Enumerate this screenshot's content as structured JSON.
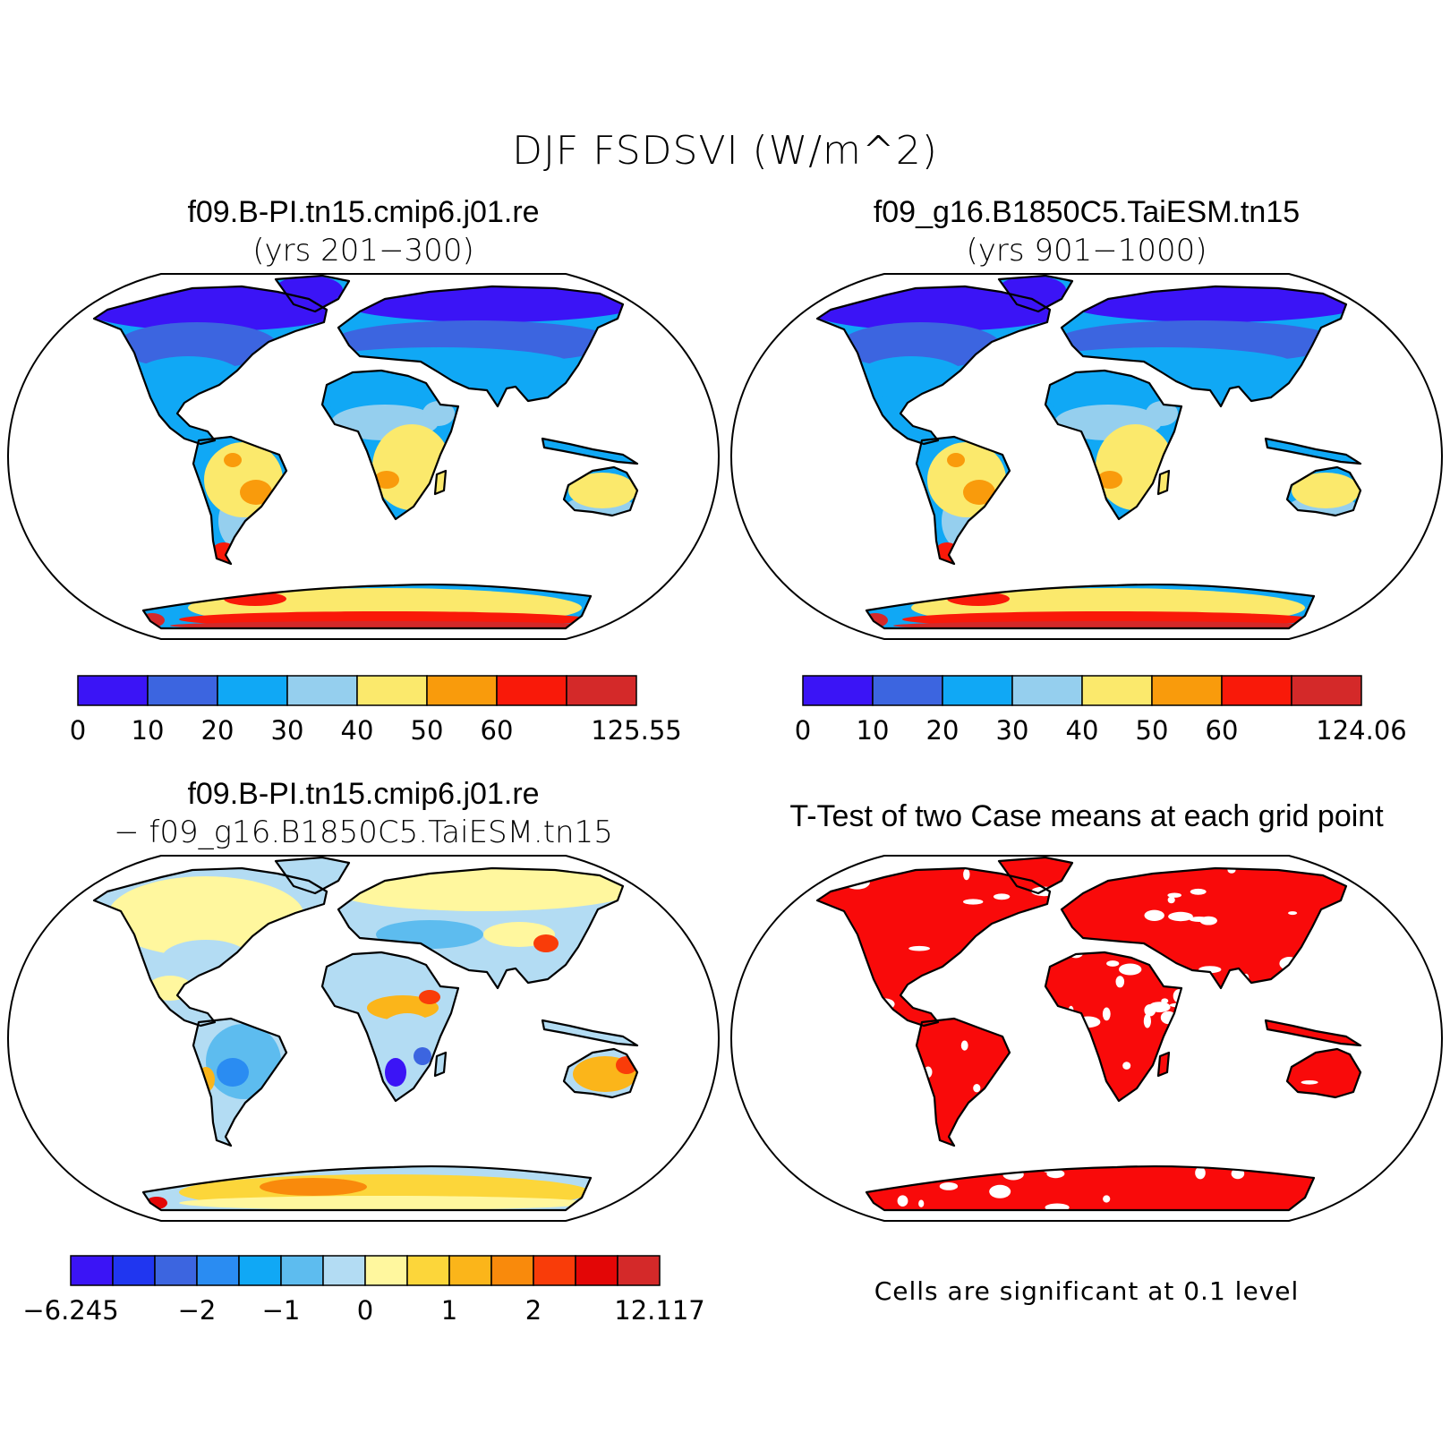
{
  "title": "DJF FSDSVI (W/m^2)",
  "panels": [
    {
      "id": "case1",
      "title_line1": "f09.B-PI.tn15.cmip6.j01.re",
      "title_line2": "(yrs 201−300)",
      "colorbar": {
        "colors": [
          "#3b14f6",
          "#3c65e0",
          "#10a8f5",
          "#95cfee",
          "#fbe96c",
          "#f99b0c",
          "#f91909",
          "#d42929"
        ],
        "tick_labels": [
          "0",
          "10",
          "20",
          "30",
          "40",
          "50",
          "60",
          "125.55"
        ]
      }
    },
    {
      "id": "case2",
      "title_line1": "f09_g16.B1850C5.TaiESM.tn15",
      "title_line2": "(yrs 901−1000)",
      "colorbar": {
        "colors": [
          "#3b14f6",
          "#3c65e0",
          "#10a8f5",
          "#95cfee",
          "#fbe96c",
          "#f99b0c",
          "#f91909",
          "#d42929"
        ],
        "tick_labels": [
          "0",
          "10",
          "20",
          "30",
          "40",
          "50",
          "60",
          "124.06"
        ]
      }
    },
    {
      "id": "diff",
      "title_line1": "f09.B-PI.tn15.cmip6.j01.re",
      "title_line2": "− f09_g16.B1850C5.TaiESM.tn15",
      "colorbar": {
        "colors": [
          "#3b14f6",
          "#2036f0",
          "#3c65e0",
          "#2a8cf2",
          "#10a8f5",
          "#5dbcef",
          "#b3dcf3",
          "#fff79e",
          "#fcd63a",
          "#fbb51a",
          "#f98a0c",
          "#f93c09",
          "#e30606",
          "#d42929"
        ],
        "tick_labels": [
          "−6.245",
          "−2",
          "−1",
          "0",
          "1",
          "2",
          "12.117"
        ]
      }
    },
    {
      "id": "ttest",
      "title_line1": "T-Test of two Case means at each grid point",
      "footer": "Cells are significant at 0.1 level",
      "significant_color": "#f90a0a"
    }
  ]
}
